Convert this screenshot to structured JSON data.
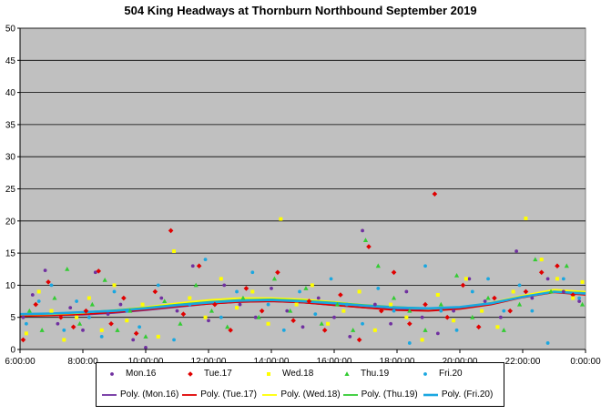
{
  "title": "504 King Headways at Thornburn Northbound September 2019",
  "colors": {
    "plot_bg": "#c0c0c0",
    "grid": "#000000",
    "mon": "#7030a0",
    "tue": "#e00000",
    "wed": "#ffff00",
    "thu": "#33cc33",
    "fri": "#1aa7e0"
  },
  "legend": {
    "markers": [
      "Mon.16",
      "Tue.17",
      "Wed.18",
      "Thu.19",
      "Fri.20"
    ],
    "trends": [
      "Poly. (Mon.16)",
      "Poly. (Tue.17)",
      "Poly. (Wed.18)",
      "Poly. (Thu.19)",
      "Poly. (Fri.20)"
    ]
  },
  "chart_data": {
    "type": "scatter",
    "title": "504 King Headways at Thornburn Northbound September 2019",
    "xlabel": "",
    "ylabel": "",
    "x_ticks": [
      "6:00:00",
      "8:00:00",
      "10:00:00",
      "12:00:00",
      "14:00:00",
      "16:00:00",
      "18:00:00",
      "20:00:00",
      "22:00:00",
      "0:00:00"
    ],
    "y_ticks": [
      "0",
      "5",
      "10",
      "15",
      "20",
      "25",
      "30",
      "35",
      "40",
      "45",
      "50"
    ],
    "xlim_hours": [
      6,
      24
    ],
    "ylim": [
      0,
      50
    ],
    "grid": "horizontal",
    "legend_position": "bottom",
    "trend_hours": [
      6,
      7,
      8,
      9,
      10,
      11,
      12,
      13,
      14,
      15,
      16,
      17,
      18,
      19,
      20,
      21,
      22,
      23,
      24
    ],
    "series": [
      {
        "name": "Mon.16",
        "marker": "dot",
        "points": [
          [
            6.1,
            5
          ],
          [
            6.4,
            8.5
          ],
          [
            6.8,
            12.3
          ],
          [
            7.2,
            4
          ],
          [
            7.6,
            6.5
          ],
          [
            8.0,
            3
          ],
          [
            8.4,
            12
          ],
          [
            8.8,
            5.5
          ],
          [
            9.2,
            7
          ],
          [
            9.6,
            1.5
          ],
          [
            10.0,
            0.3
          ],
          [
            10.5,
            8
          ],
          [
            11.0,
            6
          ],
          [
            11.5,
            13
          ],
          [
            12.0,
            4.5
          ],
          [
            12.5,
            10
          ],
          [
            13.0,
            7
          ],
          [
            13.5,
            5
          ],
          [
            14.0,
            9.5
          ],
          [
            14.5,
            6
          ],
          [
            15.0,
            3.5
          ],
          [
            15.5,
            8
          ],
          [
            16.0,
            5
          ],
          [
            16.5,
            2
          ],
          [
            16.9,
            18.5
          ],
          [
            17.3,
            7
          ],
          [
            17.8,
            4
          ],
          [
            18.3,
            9
          ],
          [
            18.8,
            5
          ],
          [
            19.3,
            2.5
          ],
          [
            19.8,
            6
          ],
          [
            20.3,
            11
          ],
          [
            20.8,
            7.5
          ],
          [
            21.3,
            5
          ],
          [
            21.8,
            15.3
          ],
          [
            22.3,
            8
          ],
          [
            22.8,
            11
          ],
          [
            23.3,
            9
          ],
          [
            23.8,
            7.5
          ]
        ],
        "trend": [
          5.3,
          5.3,
          5.4,
          5.7,
          6.1,
          6.6,
          7.1,
          7.4,
          7.5,
          7.3,
          6.9,
          6.5,
          6.2,
          6.1,
          6.4,
          7.1,
          8.2,
          9.0,
          8.6
        ]
      },
      {
        "name": "Tue.17",
        "marker": "diamond",
        "points": [
          [
            6.1,
            1.5
          ],
          [
            6.5,
            7
          ],
          [
            6.9,
            10.5
          ],
          [
            7.3,
            5
          ],
          [
            7.7,
            3.5
          ],
          [
            8.1,
            6
          ],
          [
            8.5,
            12.2
          ],
          [
            8.9,
            4
          ],
          [
            9.3,
            8
          ],
          [
            9.7,
            2.5
          ],
          [
            10.3,
            9
          ],
          [
            10.8,
            18.5
          ],
          [
            11.2,
            5.5
          ],
          [
            11.7,
            13
          ],
          [
            12.2,
            7
          ],
          [
            12.7,
            3
          ],
          [
            13.2,
            9.5
          ],
          [
            13.7,
            6
          ],
          [
            14.2,
            12
          ],
          [
            14.7,
            4.5
          ],
          [
            15.2,
            7.5
          ],
          [
            15.7,
            3
          ],
          [
            16.2,
            8.5
          ],
          [
            16.8,
            1.5
          ],
          [
            17.1,
            16
          ],
          [
            17.5,
            6
          ],
          [
            17.9,
            12
          ],
          [
            18.4,
            4
          ],
          [
            18.9,
            7
          ],
          [
            19.2,
            24.2
          ],
          [
            19.6,
            5
          ],
          [
            20.1,
            10
          ],
          [
            20.6,
            3.5
          ],
          [
            21.1,
            8
          ],
          [
            21.6,
            6
          ],
          [
            22.1,
            9
          ],
          [
            22.6,
            12
          ],
          [
            23.1,
            13
          ],
          [
            23.6,
            8.5
          ]
        ],
        "trend": [
          5.2,
          5.3,
          5.5,
          5.8,
          6.2,
          6.7,
          7.1,
          7.4,
          7.5,
          7.3,
          6.9,
          6.5,
          6.1,
          6.0,
          6.3,
          7.0,
          8.1,
          8.9,
          8.5
        ]
      },
      {
        "name": "Wed.18",
        "marker": "square",
        "points": [
          [
            6.2,
            2.5
          ],
          [
            6.6,
            9
          ],
          [
            7.0,
            6
          ],
          [
            7.4,
            1.5
          ],
          [
            7.8,
            5
          ],
          [
            8.2,
            8
          ],
          [
            8.6,
            3
          ],
          [
            9.0,
            10
          ],
          [
            9.4,
            4.5
          ],
          [
            9.9,
            7
          ],
          [
            10.4,
            2
          ],
          [
            10.9,
            15.3
          ],
          [
            11.4,
            8
          ],
          [
            11.9,
            5
          ],
          [
            12.4,
            11
          ],
          [
            12.9,
            6.5
          ],
          [
            13.4,
            9
          ],
          [
            13.9,
            4
          ],
          [
            14.3,
            20.3
          ],
          [
            14.8,
            7
          ],
          [
            15.3,
            10
          ],
          [
            15.8,
            4
          ],
          [
            16.3,
            6
          ],
          [
            16.8,
            9
          ],
          [
            17.3,
            3
          ],
          [
            17.8,
            7
          ],
          [
            18.3,
            5
          ],
          [
            18.8,
            1.5
          ],
          [
            19.3,
            8.5
          ],
          [
            19.8,
            4.5
          ],
          [
            20.2,
            11
          ],
          [
            20.7,
            6
          ],
          [
            21.2,
            3.5
          ],
          [
            21.7,
            9
          ],
          [
            22.1,
            20.4
          ],
          [
            22.6,
            14
          ],
          [
            23.1,
            11
          ],
          [
            23.6,
            8
          ],
          [
            23.9,
            10.5
          ]
        ],
        "trend": [
          5.4,
          5.5,
          5.7,
          6.1,
          6.6,
          7.2,
          7.7,
          8.0,
          8.0,
          7.8,
          7.4,
          6.9,
          6.5,
          6.3,
          6.6,
          7.3,
          8.4,
          9.3,
          9.0
        ]
      },
      {
        "name": "Thu.19",
        "marker": "triangle",
        "points": [
          [
            6.3,
            6
          ],
          [
            6.7,
            3
          ],
          [
            7.1,
            8
          ],
          [
            7.5,
            12.5
          ],
          [
            7.9,
            4
          ],
          [
            8.3,
            7
          ],
          [
            8.7,
            10.8
          ],
          [
            9.1,
            3
          ],
          [
            9.5,
            6
          ],
          [
            10.0,
            2
          ],
          [
            10.6,
            7.5
          ],
          [
            11.1,
            4
          ],
          [
            11.6,
            10
          ],
          [
            12.1,
            6
          ],
          [
            12.6,
            3.5
          ],
          [
            13.1,
            8
          ],
          [
            13.6,
            5
          ],
          [
            14.1,
            11
          ],
          [
            14.6,
            6
          ],
          [
            15.1,
            9.5
          ],
          [
            15.6,
            4
          ],
          [
            16.1,
            7
          ],
          [
            16.6,
            3
          ],
          [
            17.0,
            17
          ],
          [
            17.4,
            13
          ],
          [
            17.9,
            8
          ],
          [
            18.4,
            6
          ],
          [
            18.9,
            3
          ],
          [
            19.4,
            7
          ],
          [
            19.9,
            11.5
          ],
          [
            20.4,
            5
          ],
          [
            20.9,
            8
          ],
          [
            21.4,
            3
          ],
          [
            21.9,
            7
          ],
          [
            22.4,
            14
          ],
          [
            22.9,
            9
          ],
          [
            23.4,
            13
          ],
          [
            23.9,
            7
          ]
        ],
        "trend": [
          5.5,
          5.6,
          5.8,
          6.1,
          6.5,
          7.0,
          7.4,
          7.7,
          7.8,
          7.6,
          7.3,
          6.9,
          6.6,
          6.4,
          6.6,
          7.2,
          8.2,
          9.0,
          8.8
        ]
      },
      {
        "name": "Fri.20",
        "marker": "dot",
        "points": [
          [
            6.2,
            4
          ],
          [
            6.6,
            7.5
          ],
          [
            7.0,
            10
          ],
          [
            7.4,
            3
          ],
          [
            7.8,
            7.5
          ],
          [
            8.2,
            5
          ],
          [
            8.6,
            2
          ],
          [
            9.0,
            9
          ],
          [
            9.4,
            6
          ],
          [
            9.8,
            3.5
          ],
          [
            10.4,
            10
          ],
          [
            10.9,
            1.5
          ],
          [
            11.4,
            7
          ],
          [
            11.9,
            14
          ],
          [
            12.4,
            5
          ],
          [
            12.9,
            9
          ],
          [
            13.4,
            12
          ],
          [
            13.9,
            7
          ],
          [
            14.4,
            3
          ],
          [
            14.9,
            9
          ],
          [
            15.4,
            5.5
          ],
          [
            15.9,
            11
          ],
          [
            16.4,
            7
          ],
          [
            16.9,
            4
          ],
          [
            17.4,
            9.5
          ],
          [
            17.9,
            6
          ],
          [
            18.4,
            1
          ],
          [
            18.9,
            13
          ],
          [
            19.4,
            6
          ],
          [
            19.9,
            3
          ],
          [
            20.4,
            9
          ],
          [
            20.9,
            11
          ],
          [
            21.4,
            6
          ],
          [
            21.9,
            10
          ],
          [
            22.3,
            6
          ],
          [
            22.8,
            1
          ],
          [
            23.3,
            11
          ],
          [
            23.8,
            8
          ]
        ],
        "trend": [
          5.5,
          5.6,
          5.8,
          6.0,
          6.4,
          6.9,
          7.3,
          7.6,
          7.7,
          7.5,
          7.2,
          6.8,
          6.5,
          6.4,
          6.6,
          7.2,
          8.2,
          9.0,
          8.7
        ]
      }
    ]
  }
}
